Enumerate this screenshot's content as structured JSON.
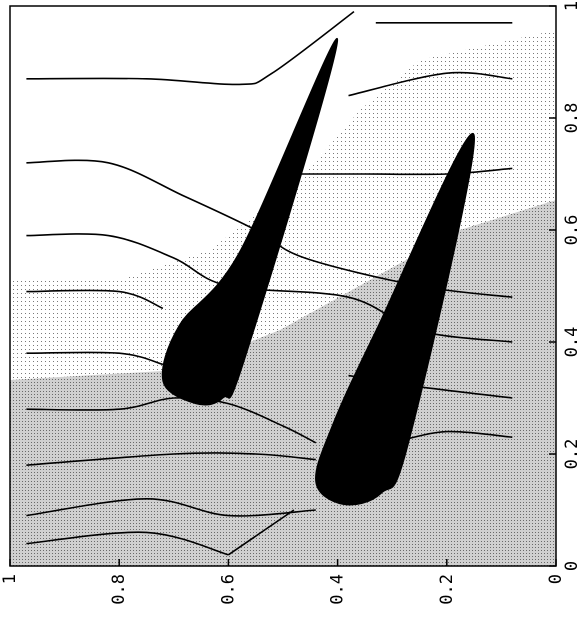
{
  "chart_data": {
    "type": "contour",
    "title": "",
    "xlabel": "",
    "ylabel": "",
    "orientation": "rotated-90-ccw",
    "x_axis": {
      "position": "bottom",
      "range": [
        1,
        0
      ],
      "ticks": [
        1,
        0.8,
        0.6,
        0.4,
        0.2,
        0
      ],
      "tick_labels": [
        "1",
        "0.8",
        "0.6",
        "0.4",
        "0.2",
        "0"
      ]
    },
    "y_axis": {
      "position": "right",
      "range": [
        0,
        1
      ],
      "ticks": [
        0,
        0.2,
        0.4,
        0.6,
        0.8,
        1
      ],
      "tick_labels": [
        "0",
        "0.2",
        "0.4",
        "0.6",
        "0.8",
        "1"
      ]
    },
    "grid": false,
    "legend": "none",
    "colors": {
      "line": "#000000",
      "blade": "#000000",
      "shade_light": "#e4e4e4",
      "shade_dark": "#c2c2c2"
    },
    "blades": [
      {
        "name_hint": "upper blade",
        "outline": [
          [
            0.4,
            0.94
          ],
          [
            0.58,
            0.56
          ],
          [
            0.69,
            0.43
          ],
          [
            0.72,
            0.33
          ],
          [
            0.66,
            0.29
          ],
          [
            0.61,
            0.3
          ],
          [
            0.57,
            0.37
          ]
        ]
      },
      {
        "name_hint": "lower blade",
        "outline": [
          [
            0.15,
            0.77
          ],
          [
            0.33,
            0.42
          ],
          [
            0.41,
            0.25
          ],
          [
            0.44,
            0.15
          ],
          [
            0.39,
            0.11
          ],
          [
            0.32,
            0.13
          ],
          [
            0.27,
            0.22
          ]
        ]
      }
    ],
    "contours": [
      {
        "points": [
          [
            0.97,
            0.87
          ],
          [
            0.75,
            0.87
          ],
          [
            0.58,
            0.86
          ],
          [
            0.52,
            0.88
          ],
          [
            0.37,
            0.99
          ]
        ]
      },
      {
        "points": [
          [
            0.97,
            0.72
          ],
          [
            0.82,
            0.72
          ],
          [
            0.68,
            0.66
          ],
          [
            0.55,
            0.6
          ],
          [
            0.46,
            0.55
          ],
          [
            0.25,
            0.5
          ],
          [
            0.08,
            0.48
          ]
        ]
      },
      {
        "points": [
          [
            0.97,
            0.59
          ],
          [
            0.82,
            0.59
          ],
          [
            0.7,
            0.55
          ],
          [
            0.6,
            0.5
          ],
          [
            0.38,
            0.48
          ],
          [
            0.25,
            0.42
          ],
          [
            0.08,
            0.4
          ]
        ]
      },
      {
        "points": [
          [
            0.97,
            0.49
          ],
          [
            0.8,
            0.49
          ],
          [
            0.72,
            0.46
          ]
        ]
      },
      {
        "points": [
          [
            0.97,
            0.38
          ],
          [
            0.8,
            0.38
          ],
          [
            0.72,
            0.36
          ]
        ]
      },
      {
        "points": [
          [
            0.97,
            0.28
          ],
          [
            0.8,
            0.28
          ],
          [
            0.7,
            0.3
          ],
          [
            0.6,
            0.29
          ],
          [
            0.5,
            0.25
          ],
          [
            0.44,
            0.22
          ]
        ]
      },
      {
        "points": [
          [
            0.97,
            0.18
          ],
          [
            0.7,
            0.2
          ],
          [
            0.55,
            0.2
          ],
          [
            0.44,
            0.19
          ]
        ]
      },
      {
        "points": [
          [
            0.97,
            0.09
          ],
          [
            0.75,
            0.12
          ],
          [
            0.6,
            0.09
          ],
          [
            0.44,
            0.1
          ]
        ]
      },
      {
        "points": [
          [
            0.97,
            0.04
          ],
          [
            0.75,
            0.06
          ],
          [
            0.6,
            0.02
          ]
        ]
      },
      {
        "points": [
          [
            0.33,
            0.97
          ],
          [
            0.2,
            0.97
          ],
          [
            0.08,
            0.97
          ]
        ]
      },
      {
        "points": [
          [
            0.38,
            0.84
          ],
          [
            0.2,
            0.88
          ],
          [
            0.08,
            0.87
          ]
        ]
      },
      {
        "points": [
          [
            0.48,
            0.7
          ],
          [
            0.35,
            0.7
          ],
          [
            0.2,
            0.7
          ],
          [
            0.08,
            0.71
          ]
        ]
      },
      {
        "points": [
          [
            0.38,
            0.34
          ],
          [
            0.25,
            0.32
          ],
          [
            0.08,
            0.3
          ]
        ]
      },
      {
        "points": [
          [
            0.3,
            0.22
          ],
          [
            0.2,
            0.24
          ],
          [
            0.08,
            0.23
          ]
        ]
      },
      {
        "points": [
          [
            0.6,
            0.02
          ],
          [
            0.48,
            0.1
          ]
        ]
      }
    ]
  }
}
